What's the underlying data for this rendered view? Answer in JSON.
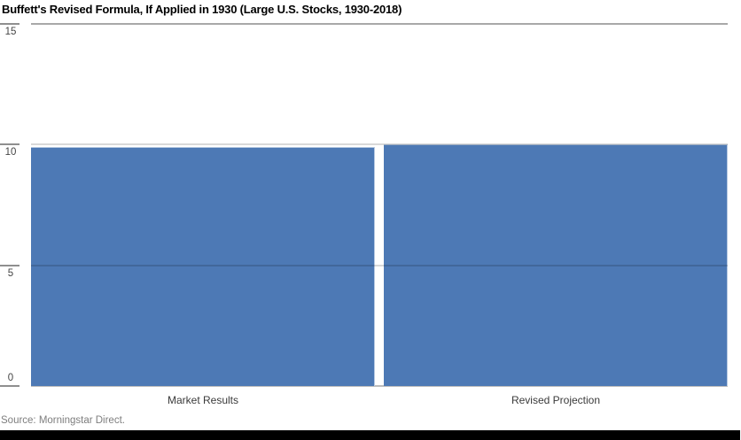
{
  "title": "Buffett's Revised Formula, If Applied in 1930 (Large U.S. Stocks, 1930-2018)",
  "source": "Source: Morningstar Direct.",
  "colors": {
    "bar_fill": "#4d79b5",
    "bar_edge": "#b9cbe3",
    "top_gridline": "#a8a8a8",
    "gridline_over_bars": "rgba(0,0,0,0.15)",
    "baseline": "#bdbdbd",
    "tick_mark": "#8f8f8f",
    "footer_bar": "#000000"
  },
  "chart_data": {
    "type": "bar",
    "categories": [
      "Market Results",
      "Revised Projection"
    ],
    "values": [
      9.9,
      10.0
    ],
    "title": "Buffett's Revised Formula, If Applied in 1930 (Large U.S. Stocks, 1930-2018)",
    "xlabel": "",
    "ylabel": "",
    "ylim": [
      0,
      15
    ],
    "yticks": [
      0,
      5,
      10,
      15
    ],
    "grid": true,
    "legend": "none",
    "bar_color": "#4d79b5",
    "source_note": "Source: Morningstar Direct."
  }
}
